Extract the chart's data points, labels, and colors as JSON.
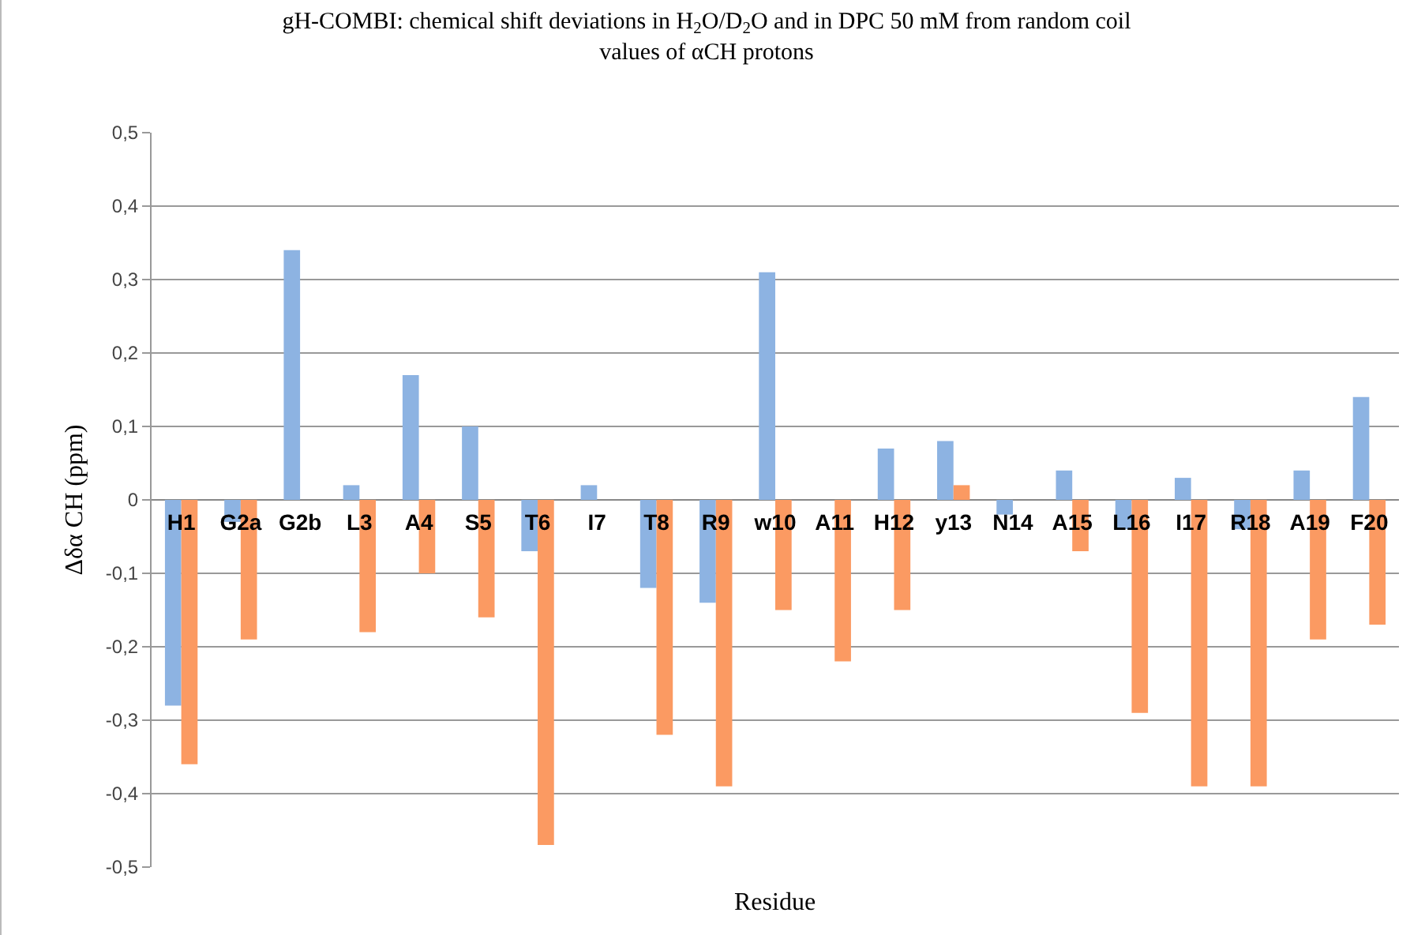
{
  "chart_data": {
    "type": "bar",
    "title": "gH-COMBI: chemical shift deviations in H$_{2}$O/D$_{2}$O and in DPC 50 mM from random coil\nvalues of αCH protons",
    "xlabel": "Residue",
    "ylabel": "Δδα CH (ppm)",
    "categories": [
      "H1",
      "G2a",
      "G2b",
      "L3",
      "A4",
      "S5",
      "T6",
      "I7",
      "T8",
      "R9",
      "w10",
      "A11",
      "H12",
      "y13",
      "N14",
      "A15",
      "L16",
      "I17",
      "R18",
      "A19",
      "F20"
    ],
    "series": [
      {
        "color": "#8db3e2",
        "values": [
          -0.28,
          -0.03,
          0.34,
          0.02,
          0.17,
          0.1,
          -0.07,
          0.02,
          -0.12,
          -0.14,
          0.31,
          null,
          0.07,
          0.08,
          -0.02,
          0.04,
          -0.04,
          0.03,
          -0.04,
          0.04,
          0.14
        ]
      },
      {
        "color": "#fb9a62",
        "values": [
          -0.36,
          -0.19,
          null,
          -0.18,
          -0.1,
          -0.16,
          -0.47,
          null,
          -0.32,
          -0.39,
          -0.15,
          -0.22,
          -0.15,
          0.02,
          null,
          -0.07,
          -0.29,
          -0.39,
          -0.39,
          -0.19,
          -0.17
        ]
      }
    ],
    "ylim": [
      -0.5,
      0.5
    ],
    "yticks": [
      {
        "value": -0.5,
        "label": "-0,5"
      },
      {
        "value": -0.4,
        "label": "-0,4"
      },
      {
        "value": -0.3,
        "label": "-0,3"
      },
      {
        "value": -0.2,
        "label": "-0,2"
      },
      {
        "value": -0.1,
        "label": "-0,1"
      },
      0,
      {
        "value": 0.1,
        "label": "0,1"
      },
      {
        "value": 0.2,
        "label": "0,2"
      },
      {
        "value": 0.3,
        "label": "0,3"
      },
      {
        "value": 0.4,
        "label": "0,4"
      },
      {
        "value": 0.5,
        "label": "0,5"
      }
    ],
    "grid": "y"
  }
}
